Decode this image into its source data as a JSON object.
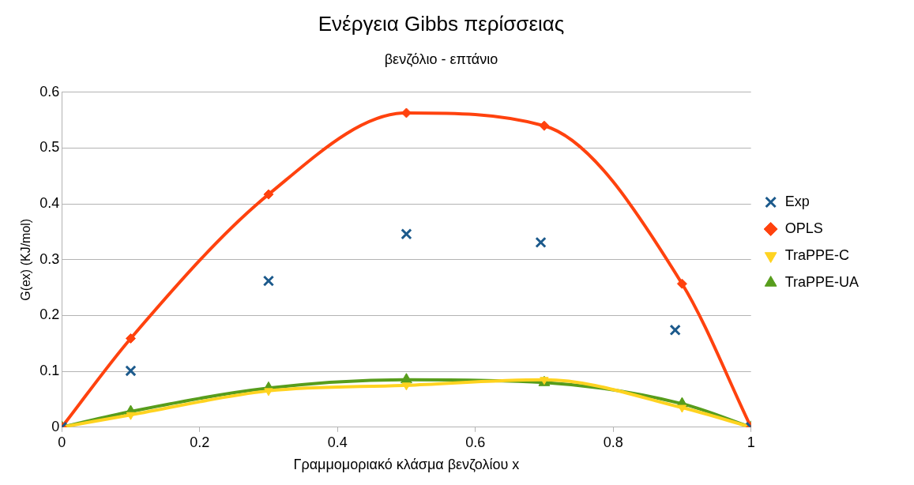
{
  "chart_data": {
    "type": "line",
    "title": "Ενέργεια Gibbs περίσσειας",
    "subtitle": "βενζόλιο - επτάνιο",
    "xlabel": "Γραμμομοριακό κλάσμα βενζολίου x",
    "ylabel": "G(ex) (KJ/mol)",
    "xlim": [
      0,
      1
    ],
    "xticks": [
      0,
      0.2,
      0.4,
      0.6,
      0.8,
      1
    ],
    "ylim": [
      0,
      0.6
    ],
    "yticks": [
      0,
      0.1,
      0.2,
      0.3,
      0.4,
      0.5,
      0.6
    ],
    "grid": "y",
    "legend": "right",
    "series": [
      {
        "name": "Exp",
        "type": "scatter",
        "marker": "cross",
        "color": "#1c5a8c",
        "x": [
          0,
          0.1,
          0.3,
          0.5,
          0.695,
          0.89,
          1
        ],
        "values": [
          0,
          0.101,
          0.262,
          0.346,
          0.331,
          0.174,
          0
        ]
      },
      {
        "name": "OPLS",
        "marker": "diamond",
        "color": "#ff420e",
        "x": [
          0,
          0.1,
          0.3,
          0.5,
          0.7,
          0.9,
          1
        ],
        "values": [
          0,
          0.159,
          0.417,
          0.563,
          0.54,
          0.257,
          0
        ]
      },
      {
        "name": "TraPPE-C",
        "marker": "triangle-down",
        "color": "#ffd320",
        "x": [
          0,
          0.1,
          0.3,
          0.5,
          0.7,
          0.9,
          1
        ],
        "values": [
          0,
          0.022,
          0.065,
          0.075,
          0.085,
          0.035,
          0
        ]
      },
      {
        "name": "TraPPE-UA",
        "marker": "triangle",
        "color": "#579d1c",
        "x": [
          0,
          0.1,
          0.3,
          0.5,
          0.7,
          0.9,
          1
        ],
        "values": [
          0,
          0.028,
          0.07,
          0.085,
          0.08,
          0.042,
          0
        ]
      }
    ]
  }
}
